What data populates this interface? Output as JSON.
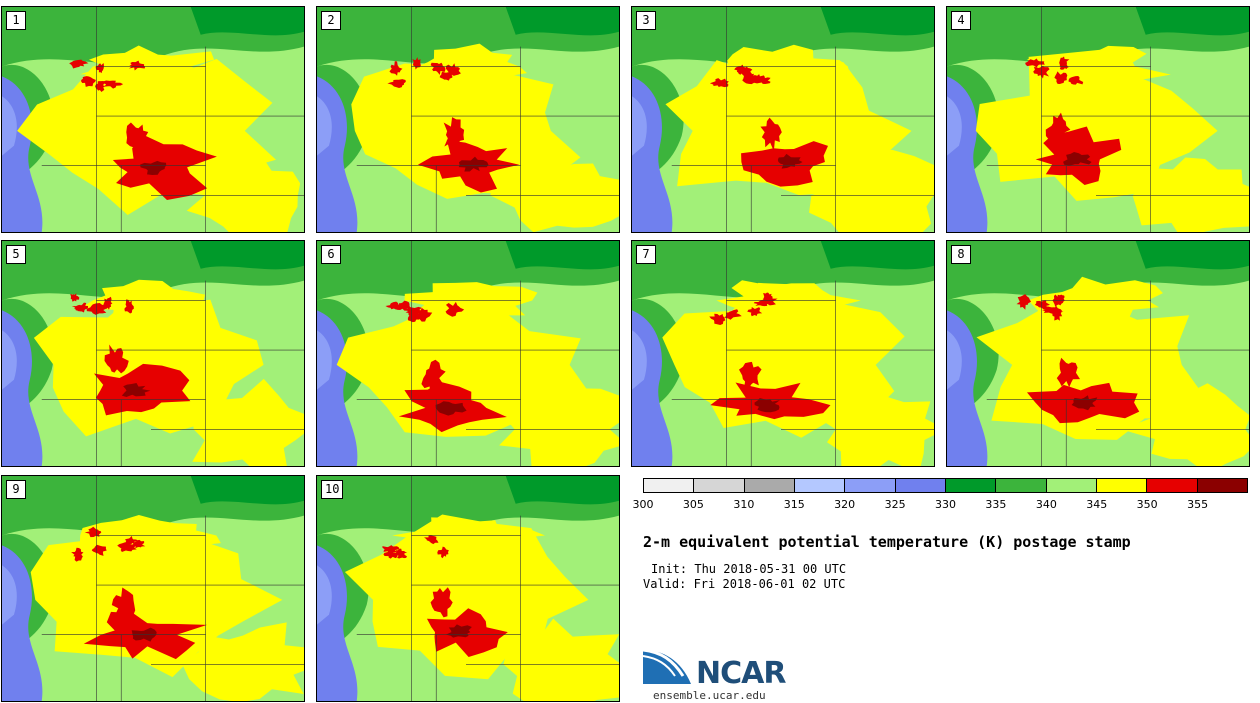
{
  "panels": [
    {
      "label": "1"
    },
    {
      "label": "2"
    },
    {
      "label": "3"
    },
    {
      "label": "4"
    },
    {
      "label": "5"
    },
    {
      "label": "6"
    },
    {
      "label": "7"
    },
    {
      "label": "8"
    },
    {
      "label": "9"
    },
    {
      "label": "10"
    }
  ],
  "colorbar": {
    "ticks": [
      "300",
      "305",
      "310",
      "315",
      "320",
      "325",
      "330",
      "335",
      "340",
      "345",
      "350",
      "355"
    ],
    "colors": [
      "#f0f0f0",
      "#d6d6d6",
      "#aaaaaa",
      "#b4c8ff",
      "#8c9ef7",
      "#7080ee",
      "#009a2a",
      "#3cb43c",
      "#a2f078",
      "#ffff00",
      "#e60000",
      "#8b0000"
    ]
  },
  "title": "2-m equivalent potential temperature (K) postage stamp",
  "init": "Init: Thu 2018-05-31 00 UTC",
  "valid": "Valid: Fri 2018-06-01 02 UTC",
  "logo": {
    "name": "NCAR",
    "url": "ensemble.ucar.edu"
  }
}
